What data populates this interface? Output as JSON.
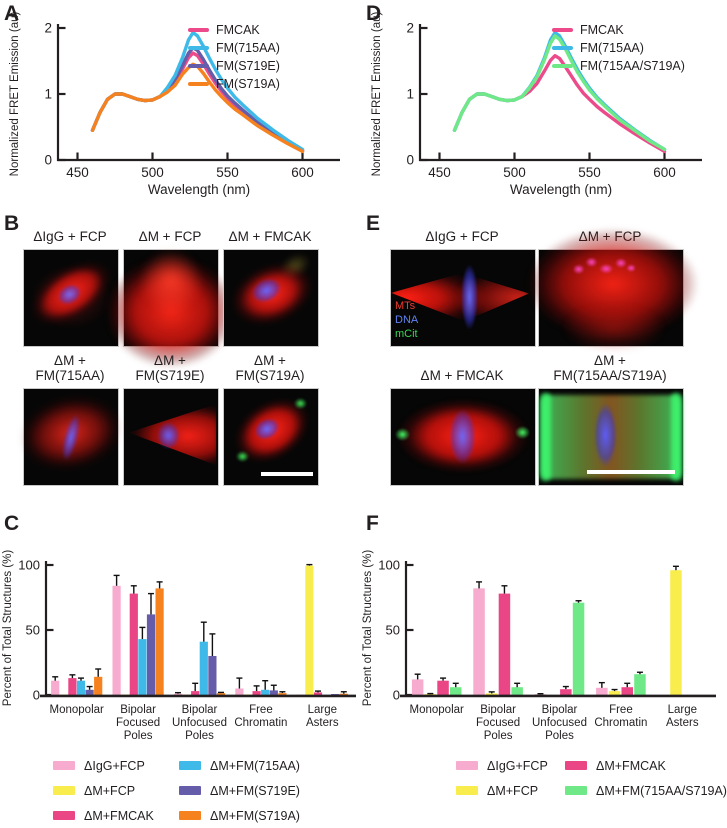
{
  "panels": {
    "a": "A",
    "b": "B",
    "c": "C",
    "d": "D",
    "e": "E",
    "f": "F"
  },
  "panelB": {
    "tiles": [
      {
        "caption": "ΔIgG + FCP"
      },
      {
        "caption": "ΔM + FCP"
      },
      {
        "caption": "ΔM + FMCAK"
      },
      {
        "caption": "ΔM +\nFM(715AA)"
      },
      {
        "caption": "ΔM +\nFM(S719E)"
      },
      {
        "caption": "ΔM +\nFM(S719A)",
        "has_scale_bar": true
      }
    ]
  },
  "panelE": {
    "channels": [
      {
        "label": "MTs",
        "color": "#f0392c"
      },
      {
        "label": "DNA",
        "color": "#5f83f2"
      },
      {
        "label": "mCit",
        "color": "#3ed456"
      }
    ],
    "tiles": [
      {
        "caption": "ΔIgG + FCP"
      },
      {
        "caption": "ΔM + FCP"
      },
      {
        "caption": "ΔM + FMCAK"
      },
      {
        "caption": "ΔM +\nFM(715AA/S719A)",
        "has_scale_bar": true
      }
    ]
  },
  "chart_data": [
    {
      "type": "line",
      "panel": "A",
      "xlabel": "Wavelength (nm)",
      "ylabel": "Normalized FRET Emission (au)",
      "xlim": [
        437,
        625
      ],
      "ylim": [
        0,
        2
      ],
      "x_ticks": [
        450,
        500,
        550,
        600
      ],
      "y_ticks": [
        0,
        1,
        2
      ],
      "grid": false,
      "legend_position": "top-right",
      "x": [
        460,
        465,
        470,
        475,
        480,
        485,
        490,
        495,
        500,
        505,
        510,
        515,
        520,
        524,
        527,
        530,
        534,
        538,
        542,
        546,
        550,
        555,
        560,
        570,
        580,
        590,
        600
      ],
      "draw_order": [
        0,
        2,
        1,
        3
      ],
      "series": [
        {
          "name": "FMCAK",
          "color": "#ec4a8b",
          "peak_nm": 527,
          "peak_value": 1.62,
          "values": [
            0.45,
            0.72,
            0.92,
            1.0,
            1.0,
            0.96,
            0.92,
            0.9,
            0.91,
            0.96,
            1.05,
            1.18,
            1.38,
            1.55,
            1.62,
            1.58,
            1.45,
            1.3,
            1.16,
            1.04,
            0.94,
            0.83,
            0.74,
            0.56,
            0.41,
            0.27,
            0.14
          ]
        },
        {
          "name": "FM(715AA)",
          "color": "#3fb9e8",
          "peak_nm": 527,
          "peak_value": 1.93,
          "values": [
            0.45,
            0.72,
            0.92,
            1.0,
            1.0,
            0.96,
            0.92,
            0.9,
            0.91,
            0.96,
            1.1,
            1.28,
            1.55,
            1.82,
            1.93,
            1.88,
            1.72,
            1.54,
            1.37,
            1.22,
            1.09,
            0.95,
            0.84,
            0.63,
            0.46,
            0.3,
            0.16
          ]
        },
        {
          "name": "FM(S719E)",
          "color": "#655da9",
          "peak_nm": 527,
          "peak_value": 1.7,
          "values": [
            0.45,
            0.72,
            0.92,
            1.0,
            1.0,
            0.96,
            0.92,
            0.9,
            0.91,
            0.96,
            1.06,
            1.21,
            1.43,
            1.62,
            1.7,
            1.66,
            1.52,
            1.36,
            1.21,
            1.08,
            0.97,
            0.86,
            0.76,
            0.57,
            0.42,
            0.28,
            0.14
          ]
        },
        {
          "name": "FM(S719A)",
          "color": "#f5821f",
          "peak_nm": 527,
          "peak_value": 1.45,
          "values": [
            0.45,
            0.72,
            0.92,
            1.0,
            1.0,
            0.96,
            0.92,
            0.9,
            0.91,
            0.96,
            1.03,
            1.13,
            1.3,
            1.4,
            1.45,
            1.42,
            1.31,
            1.18,
            1.06,
            0.96,
            0.87,
            0.77,
            0.69,
            0.52,
            0.38,
            0.25,
            0.13
          ]
        }
      ]
    },
    {
      "type": "line",
      "panel": "D",
      "xlabel": "Wavelength (nm)",
      "ylabel": "Normalized FRET Emission (au)",
      "xlim": [
        437,
        625
      ],
      "ylim": [
        0,
        2
      ],
      "x_ticks": [
        450,
        500,
        550,
        600
      ],
      "y_ticks": [
        0,
        1,
        2
      ],
      "grid": false,
      "legend_position": "top-right",
      "x": [
        460,
        465,
        470,
        475,
        480,
        485,
        490,
        495,
        500,
        505,
        510,
        515,
        520,
        524,
        527,
        530,
        534,
        538,
        542,
        546,
        550,
        555,
        560,
        570,
        580,
        590,
        600
      ],
      "draw_order": [
        0,
        1,
        2
      ],
      "series": [
        {
          "name": "FMCAK",
          "color": "#ec4a8b",
          "peak_nm": 527,
          "peak_value": 1.58,
          "values": [
            0.45,
            0.72,
            0.92,
            1.0,
            1.0,
            0.96,
            0.92,
            0.9,
            0.91,
            0.96,
            1.04,
            1.16,
            1.35,
            1.51,
            1.58,
            1.54,
            1.41,
            1.27,
            1.13,
            1.01,
            0.92,
            0.81,
            0.72,
            0.55,
            0.4,
            0.26,
            0.13
          ]
        },
        {
          "name": "FM(715AA)",
          "color": "#3fb9e8",
          "peak_nm": 527,
          "peak_value": 1.93,
          "values": [
            0.45,
            0.72,
            0.92,
            1.0,
            1.0,
            0.96,
            0.92,
            0.9,
            0.91,
            0.96,
            1.1,
            1.28,
            1.55,
            1.82,
            1.93,
            1.88,
            1.72,
            1.54,
            1.37,
            1.22,
            1.09,
            0.95,
            0.84,
            0.63,
            0.46,
            0.3,
            0.16
          ]
        },
        {
          "name": "FM(715AA/S719A)",
          "color": "#6fe987",
          "peak_nm": 527,
          "peak_value": 1.88,
          "values": [
            0.45,
            0.72,
            0.92,
            1.0,
            1.0,
            0.96,
            0.92,
            0.9,
            0.91,
            0.96,
            1.09,
            1.26,
            1.52,
            1.77,
            1.88,
            1.83,
            1.68,
            1.5,
            1.33,
            1.19,
            1.06,
            0.93,
            0.82,
            0.61,
            0.45,
            0.29,
            0.16
          ]
        }
      ]
    },
    {
      "type": "bar",
      "panel": "C",
      "ylabel": "Percent of Total Structures (%)",
      "ylim": [
        0,
        100
      ],
      "y_ticks": [
        0,
        50,
        100
      ],
      "grid": false,
      "legend_position": "bottom",
      "bar_width": 8.2,
      "categories": [
        [
          "Monopolar"
        ],
        [
          "Bipolar",
          "Focused",
          "Poles"
        ],
        [
          "Bipolar",
          "Unfocused",
          "Poles"
        ],
        [
          "Free",
          "Chromatin"
        ],
        [
          "Large",
          "Asters"
        ]
      ],
      "series": [
        {
          "name": "ΔIgG+FCP",
          "color": "#f7abce",
          "values": [
            11,
            84,
            1,
            5,
            0.3
          ],
          "errors": [
            3,
            8,
            0.8,
            8,
            0
          ]
        },
        {
          "name": "ΔM+FCP",
          "color": "#f9ed4e",
          "values": [
            0.3,
            0.4,
            0.2,
            0.4,
            99.5
          ],
          "errors": [
            0,
            0,
            0,
            0,
            0.8
          ]
        },
        {
          "name": "ΔM+FMCAK",
          "color": "#ea4585",
          "values": [
            13,
            78,
            3,
            3,
            2
          ],
          "errors": [
            2.5,
            6,
            6,
            4,
            1
          ]
        },
        {
          "name": "ΔM+FM(715AA)",
          "color": "#3fb9e8",
          "values": [
            11,
            43,
            41,
            4,
            0.2
          ],
          "errors": [
            2,
            9,
            15,
            7,
            0
          ]
        },
        {
          "name": "ΔM+FM(S719E)",
          "color": "#655da9",
          "values": [
            4,
            62,
            30,
            3.5,
            0.8
          ],
          "errors": [
            2.5,
            16,
            17,
            4,
            0
          ]
        },
        {
          "name": "ΔM+FM(S719A)",
          "color": "#f5821f",
          "values": [
            14,
            82,
            1.5,
            1.5,
            1
          ],
          "errors": [
            6,
            5,
            0.5,
            1,
            1.5
          ]
        }
      ]
    },
    {
      "type": "bar",
      "panel": "F",
      "ylabel": "Percent of Total Structures (%)",
      "ylim": [
        0,
        100
      ],
      "y_ticks": [
        0,
        50,
        100
      ],
      "grid": false,
      "legend_position": "bottom",
      "bar_width": 11.5,
      "categories": [
        [
          "Monopolar"
        ],
        [
          "Bipolar",
          "Focused",
          "Poles"
        ],
        [
          "Bipolar",
          "Unfocused",
          "Poles"
        ],
        [
          "Free",
          "Chromatin"
        ],
        [
          "Large",
          "Asters"
        ]
      ],
      "series": [
        {
          "name": "ΔIgG+FCP",
          "color": "#f7abce",
          "values": [
            12,
            82,
            0.6,
            5.5,
            0
          ],
          "errors": [
            4,
            5,
            0.4,
            4,
            0
          ]
        },
        {
          "name": "ΔM+FCP",
          "color": "#f9ed4e",
          "values": [
            0.7,
            1.2,
            0,
            3,
            96
          ],
          "errors": [
            0.4,
            1.2,
            0,
            1.2,
            3
          ]
        },
        {
          "name": "ΔM+FMCAK",
          "color": "#ea4585",
          "values": [
            11,
            78,
            4.5,
            6,
            0
          ],
          "errors": [
            2,
            6,
            2,
            3,
            0
          ]
        },
        {
          "name": "ΔM+FM(715AA/S719A)",
          "color": "#6fe987",
          "values": [
            6,
            6,
            71,
            16,
            0
          ],
          "errors": [
            3,
            3,
            1.5,
            1.5,
            0
          ]
        }
      ]
    }
  ]
}
